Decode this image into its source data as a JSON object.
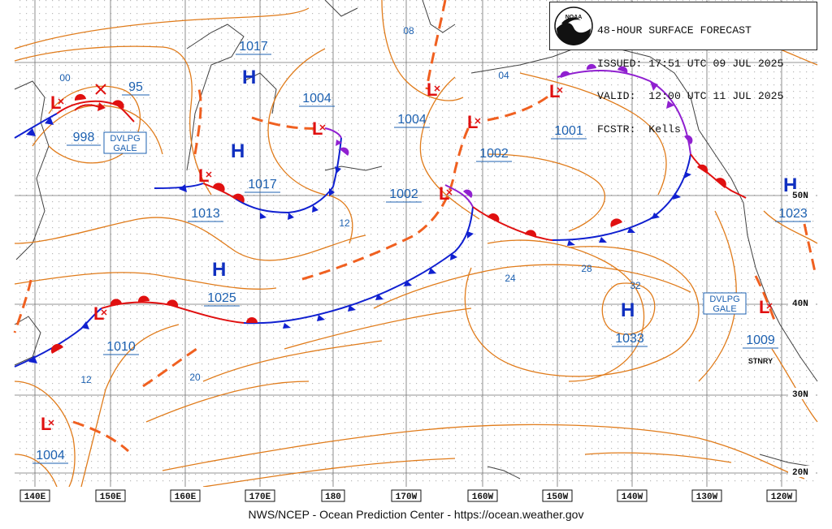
{
  "header": {
    "lines": [
      "48-HOUR SURFACE FORECAST",
      "ISSUED: 17:51 UTC 09 JUL 2025",
      "VALID:  12:00 UTC 11 JUL 2025",
      "FCSTR:  Kells"
    ],
    "logo": "noaa-logo"
  },
  "footer": "NWS/NCEP - Ocean Prediction Center - https://ocean.weather.gov",
  "longitude_labels": [
    "140E",
    "150E",
    "160E",
    "170E",
    "180",
    "170W",
    "160W",
    "150W",
    "140W",
    "130W",
    "120W"
  ],
  "latitude_labels": [
    "50N",
    "40N",
    "30N",
    "20N"
  ],
  "pressure_centers": [
    {
      "type": "L",
      "value": "998"
    },
    {
      "type": "L",
      "value": "95"
    },
    {
      "type": "H",
      "value": "1017"
    },
    {
      "type": "L",
      "value": "1004"
    },
    {
      "type": "H",
      "value": "1017"
    },
    {
      "type": "L",
      "value": "1013"
    },
    {
      "type": "L",
      "value": "1004"
    },
    {
      "type": "L",
      "value": "1002"
    },
    {
      "type": "L",
      "value": "1002"
    },
    {
      "type": "L",
      "value": "1001"
    },
    {
      "type": "H",
      "value": "1025"
    },
    {
      "type": "L",
      "value": "1010"
    },
    {
      "type": "H",
      "value": "1033"
    },
    {
      "type": "H",
      "value": "1023"
    },
    {
      "type": "L",
      "value": "1009"
    },
    {
      "type": "L",
      "value": "1004"
    }
  ],
  "isobar_labels": [
    "00",
    "08",
    "04",
    "12",
    "24",
    "28",
    "32",
    "20",
    "12"
  ],
  "warnings": [
    "DVLPG\nGALE",
    "DVLPG\nGALE"
  ],
  "annotations": [
    "STNRY"
  ],
  "colors": {
    "isobar": "#e07b1a",
    "trough": "#f06020",
    "cold_front": "#1020d0",
    "warm_front": "#e01010",
    "occluded": "#9020d0",
    "low": "#e01010",
    "high": "#1030c0",
    "label": "#1c60b0",
    "grid": "#707070",
    "coast": "#404040"
  }
}
